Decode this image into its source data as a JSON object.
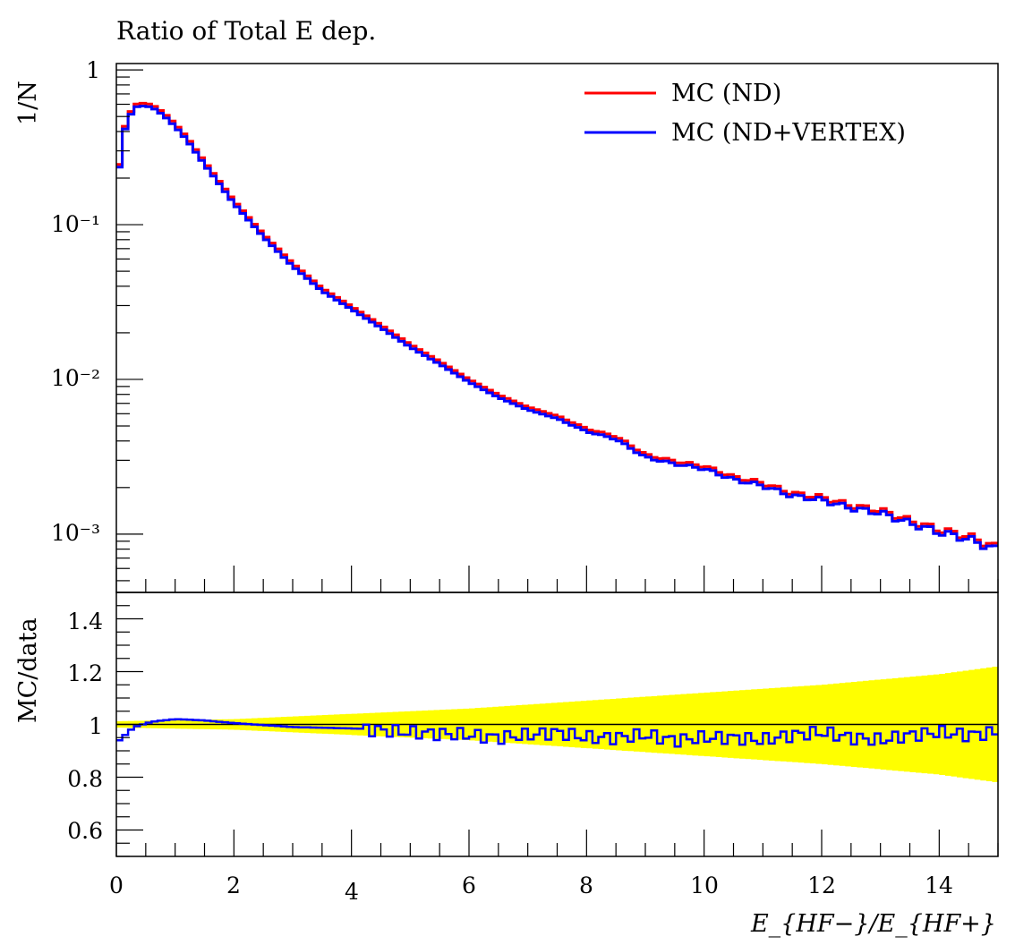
{
  "title": "Ratio of Total E dep.",
  "colors": {
    "mc_nd": "#ff0000",
    "mc_nd_vertex": "#0000ff",
    "uncertainty_band": "#ffff00",
    "reference_line": "#000000"
  },
  "legend": {
    "entries": [
      "MC (ND)",
      "MC (ND+VERTEX)"
    ],
    "placement": "top-right"
  },
  "main_panel": {
    "ylabel": "1/N",
    "yscale": "log",
    "y_tick_labels": [
      "1",
      "10⁻¹",
      "10⁻²",
      "10⁻³"
    ]
  },
  "ratio_panel": {
    "ylabel": "MC/data",
    "y_tick_labels": [
      "0.6",
      "0.8",
      "1",
      "1.2",
      "1.4"
    ]
  },
  "x_axis": {
    "label": "E_{HF−}/E_{HF+}",
    "tick_labels": [
      "0",
      "2",
      "4",
      "6",
      "8",
      "10",
      "12",
      "14"
    ]
  },
  "chart_data": [
    {
      "type": "line",
      "panel": "main",
      "title": "Ratio of Total E dep.",
      "xlabel": "",
      "ylabel": "1/N",
      "xlim": [
        0,
        15
      ],
      "ylim": [
        0.00042,
        1.1
      ],
      "yscale": "log",
      "binning": {
        "start": 0,
        "width": 0.1,
        "count": 150
      },
      "x_ticks": [
        0,
        2,
        4,
        6,
        8,
        10,
        12,
        14
      ],
      "legend": "top-right",
      "shape_points": {
        "x": [
          0.0,
          0.1,
          0.2,
          0.35,
          0.5,
          0.65,
          0.8,
          1.0,
          1.2,
          1.5,
          2.0,
          2.5,
          3.0,
          3.5,
          4.0,
          4.5,
          5.0,
          5.5,
          6.0,
          6.5,
          7.0,
          7.5,
          8.0,
          8.5,
          9.0,
          9.5,
          10.0,
          10.5,
          11.0,
          11.5,
          12.0,
          12.5,
          13.0,
          13.5,
          14.0,
          14.5,
          15.0
        ],
        "y": [
          0.16,
          0.36,
          0.5,
          0.59,
          0.6,
          0.57,
          0.52,
          0.44,
          0.36,
          0.25,
          0.14,
          0.085,
          0.055,
          0.038,
          0.029,
          0.022,
          0.0165,
          0.0128,
          0.0098,
          0.0078,
          0.0065,
          0.0057,
          0.0047,
          0.0042,
          0.0032,
          0.0029,
          0.0027,
          0.0023,
          0.0021,
          0.0018,
          0.0017,
          0.0015,
          0.0014,
          0.0012,
          0.00105,
          0.00095,
          0.0008
        ]
      },
      "series": [
        {
          "name": "MC (ND)",
          "color": "#ff0000",
          "style": "histogram-step",
          "scale": 1.02
        },
        {
          "name": "MC (ND+VERTEX)",
          "color": "#0000ff",
          "style": "histogram-step",
          "scale": 0.98
        }
      ]
    },
    {
      "type": "line",
      "panel": "ratio",
      "xlabel": "E_{HF−}/E_{HF+}",
      "ylabel": "MC/data",
      "xlim": [
        0,
        15
      ],
      "ylim": [
        0.5,
        1.5
      ],
      "yscale": "linear",
      "y_ticks": [
        0.6,
        0.8,
        1.0,
        1.2,
        1.4
      ],
      "x_ticks": [
        0,
        2,
        4,
        6,
        8,
        10,
        12,
        14
      ],
      "reference_line": 1.0,
      "uncertainty_band": {
        "x": [
          0,
          2,
          4,
          6,
          8,
          10,
          12,
          14,
          15
        ],
        "half_width": [
          0.012,
          0.02,
          0.04,
          0.06,
          0.09,
          0.12,
          0.15,
          0.19,
          0.22
        ]
      },
      "series": [
        {
          "name": "MC (ND+VERTEX)",
          "color": "#0000ff",
          "style": "histogram-step",
          "x": [
            0.0,
            0.3,
            0.6,
            1.0,
            1.5,
            2.0,
            3.0,
            4.0,
            5.0,
            6.0,
            6.5,
            7.0,
            7.5,
            8.0,
            8.5,
            9.0,
            9.5,
            10.0,
            10.5,
            11.0,
            11.5,
            12.0,
            12.5,
            13.0,
            13.5,
            14.0,
            14.5,
            15.0
          ],
          "y": [
            0.93,
            0.99,
            1.01,
            1.02,
            1.015,
            1.005,
            0.99,
            0.985,
            0.97,
            0.96,
            0.95,
            0.96,
            0.97,
            0.95,
            0.95,
            0.96,
            0.94,
            0.95,
            0.95,
            0.94,
            0.96,
            0.97,
            0.95,
            0.94,
            0.96,
            0.97,
            0.96,
            0.97
          ]
        }
      ]
    }
  ]
}
